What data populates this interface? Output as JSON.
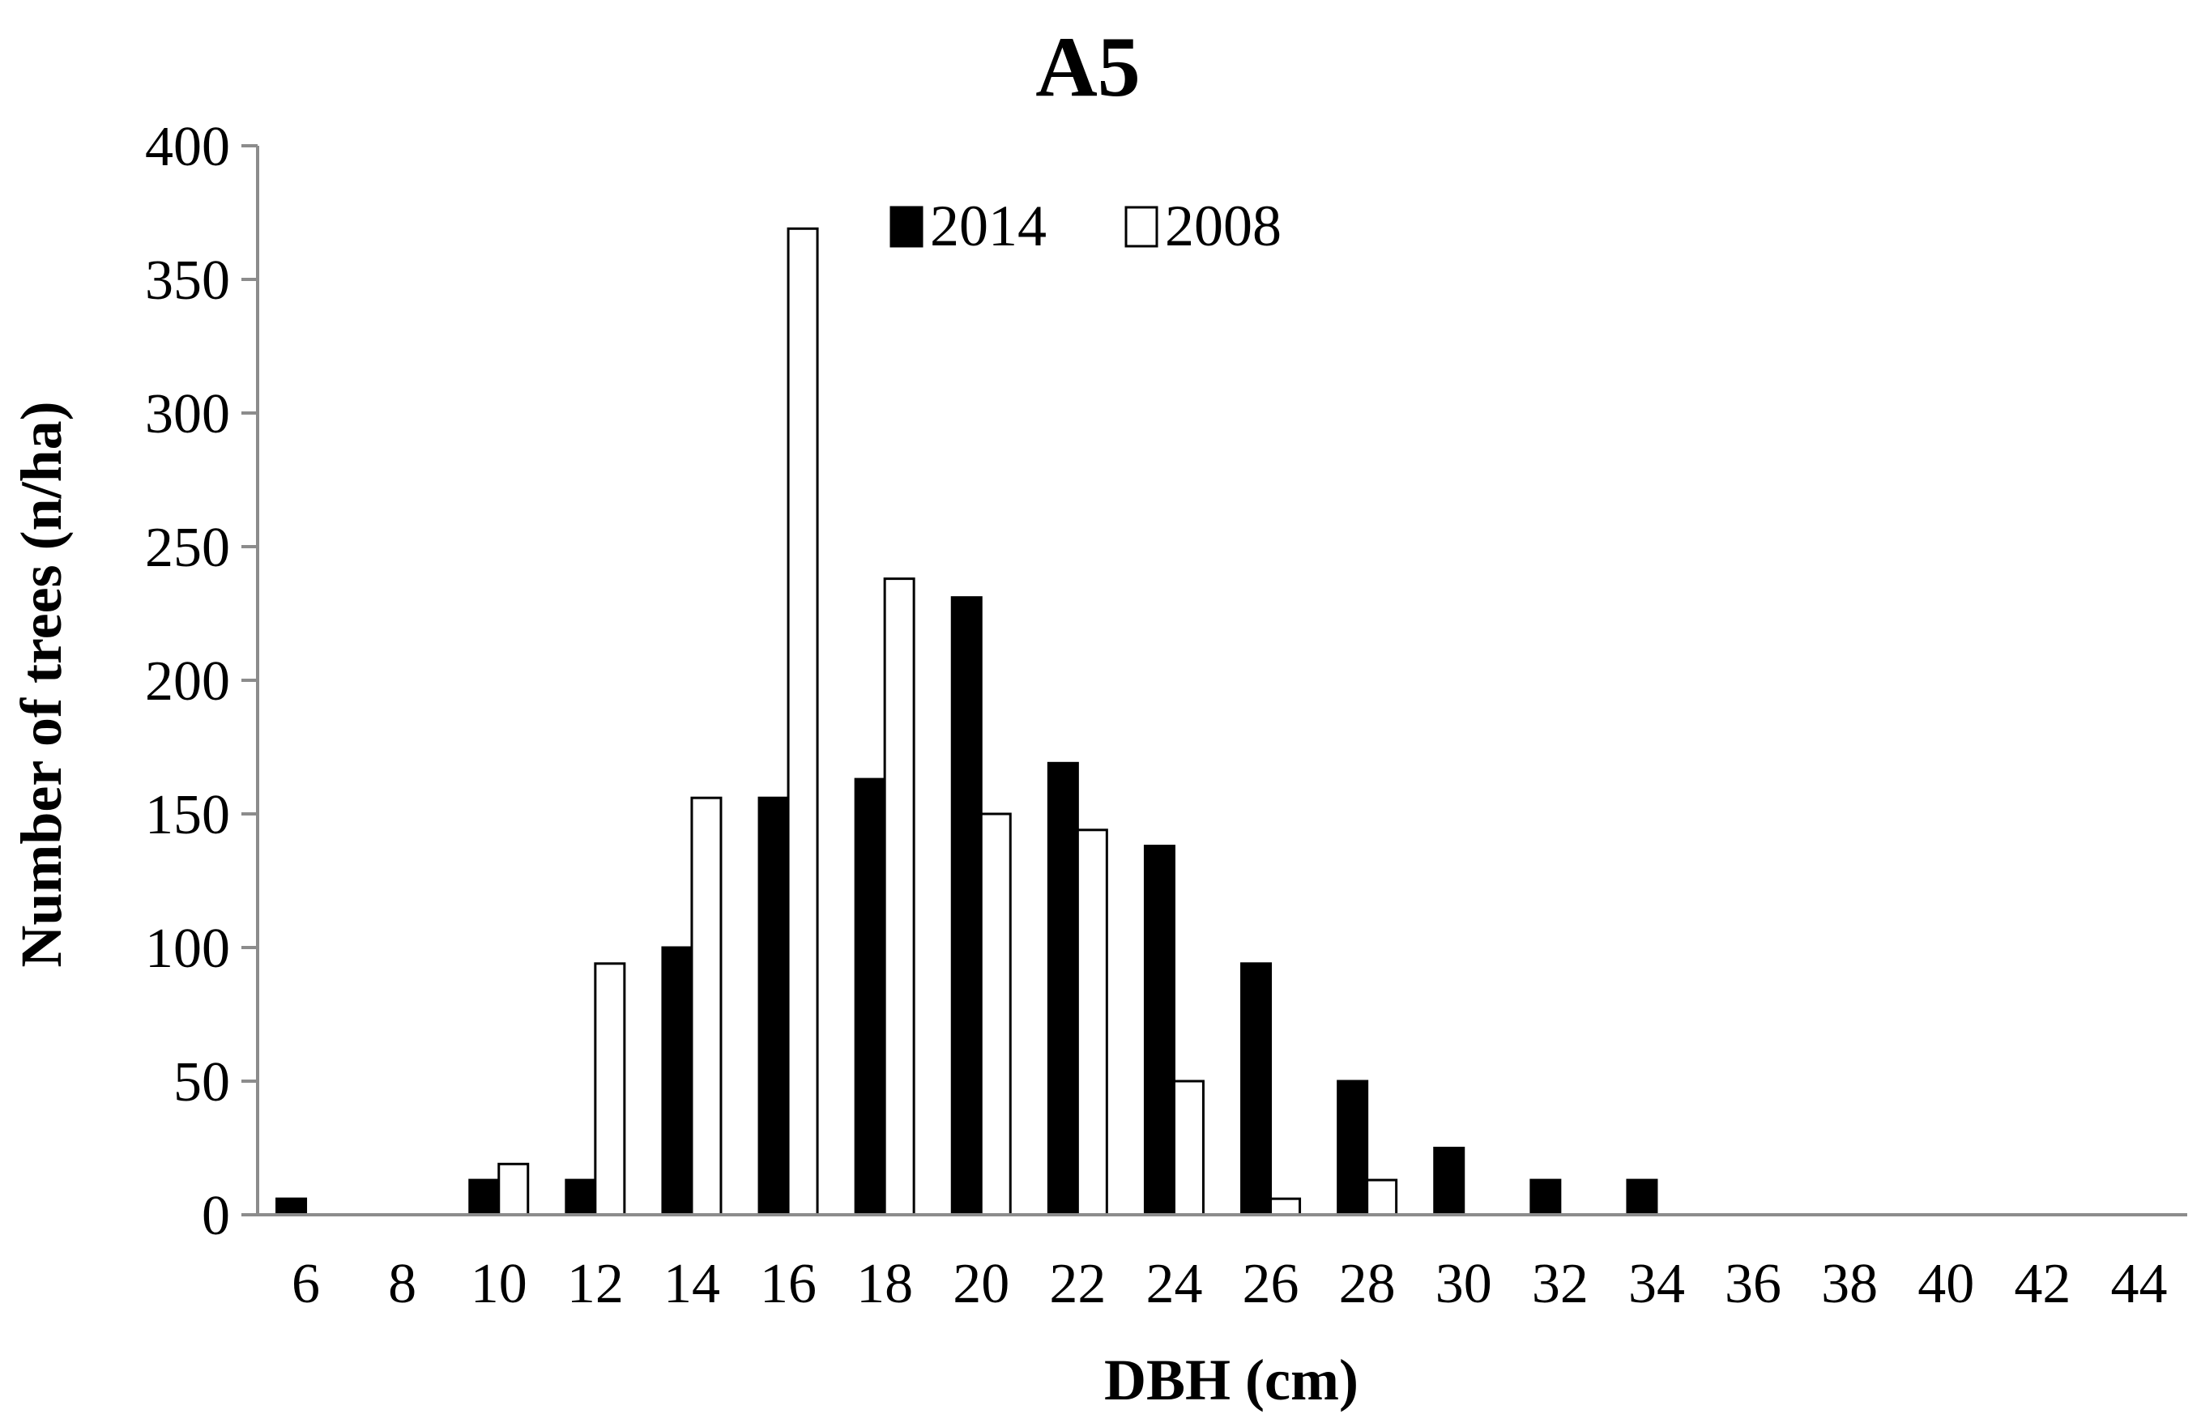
{
  "chart_data": {
    "type": "bar",
    "title": "A5",
    "xlabel": "DBH (cm)",
    "ylabel": "Number of trees (n/ha)",
    "categories": [
      "6",
      "8",
      "10",
      "12",
      "14",
      "16",
      "18",
      "20",
      "22",
      "24",
      "26",
      "28",
      "30",
      "32",
      "34",
      "36",
      "38",
      "40",
      "42",
      "44"
    ],
    "series": [
      {
        "name": "2014",
        "color": "#000000",
        "values": [
          6,
          0,
          13,
          13,
          100,
          156,
          163,
          231,
          169,
          138,
          94,
          50,
          25,
          13,
          13,
          0,
          0,
          0,
          0,
          0
        ]
      },
      {
        "name": "2008",
        "color": "#ffffff",
        "values": [
          0,
          0,
          19,
          94,
          156,
          369,
          238,
          150,
          144,
          50,
          6,
          13,
          0,
          0,
          0,
          0,
          0,
          0,
          0,
          0
        ]
      }
    ],
    "ylim": [
      0,
      400
    ],
    "yticks": [
      0,
      50,
      100,
      150,
      200,
      250,
      300,
      350,
      400
    ],
    "grid": false,
    "legend": "top-center"
  }
}
